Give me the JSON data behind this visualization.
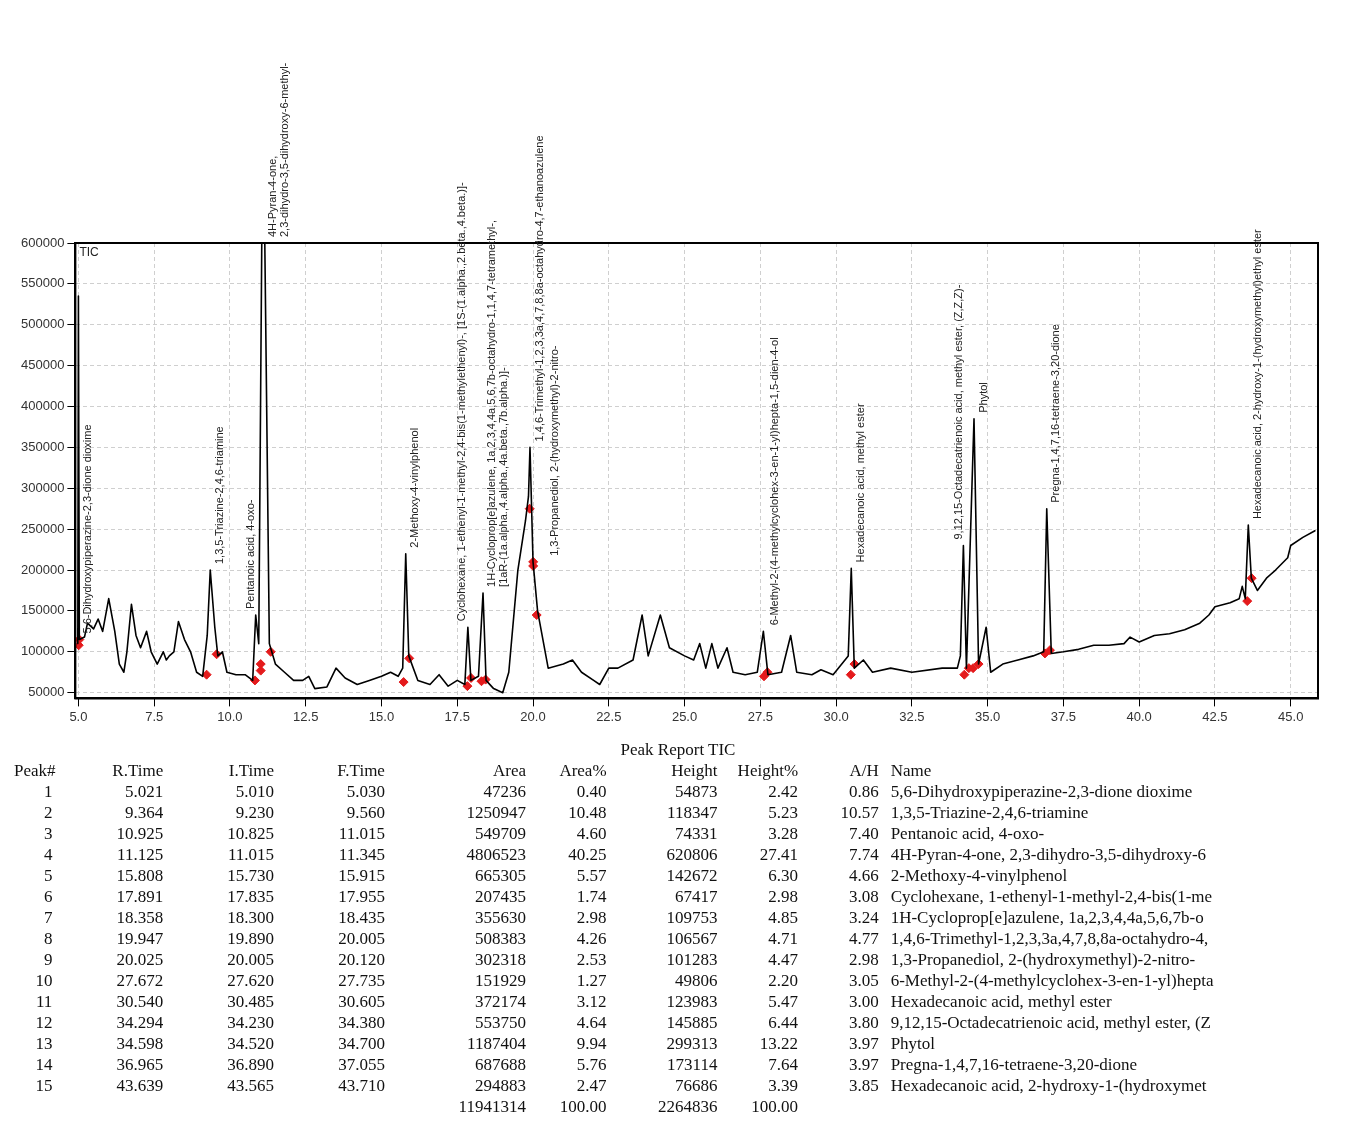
{
  "chart_data": {
    "type": "line",
    "xlim": [
      4.9,
      45.9
    ],
    "ylim": [
      43000,
      600000
    ],
    "xticks": [
      {
        "value": 5,
        "label": "5.0"
      },
      {
        "value": 7.5,
        "label": "7.5"
      },
      {
        "value": 10,
        "label": "10.0"
      },
      {
        "value": 12.5,
        "label": "12.5"
      },
      {
        "value": 15,
        "label": "15.0"
      },
      {
        "value": 17.5,
        "label": "17.5"
      },
      {
        "value": 20,
        "label": "20.0"
      },
      {
        "value": 22.5,
        "label": "22.5"
      },
      {
        "value": 25,
        "label": "25.0"
      },
      {
        "value": 27.5,
        "label": "27.5"
      },
      {
        "value": 30,
        "label": "30.0"
      },
      {
        "value": 32.5,
        "label": "32.5"
      },
      {
        "value": 35,
        "label": "35.0"
      },
      {
        "value": 37.5,
        "label": "37.5"
      },
      {
        "value": 40,
        "label": "40.0"
      },
      {
        "value": 42.5,
        "label": "42.5"
      },
      {
        "value": 45,
        "label": "45.0"
      }
    ],
    "yticks": [
      50000,
      100000,
      150000,
      200000,
      250000,
      300000,
      350000,
      400000,
      450000,
      500000,
      550000,
      600000
    ],
    "grid": true,
    "legend": false,
    "series": [
      {
        "type": "line",
        "color": "#000000",
        "x": [
          4.98,
          5.0,
          5.03,
          5.2,
          5.3,
          5.5,
          5.65,
          5.8,
          6.0,
          6.2,
          6.35,
          6.5,
          6.6,
          6.75,
          6.9,
          7.05,
          7.25,
          7.4,
          7.6,
          7.8,
          7.9,
          8.0,
          8.15,
          8.3,
          8.5,
          8.7,
          8.9,
          9.1,
          9.25,
          9.35,
          9.5,
          9.6,
          9.75,
          9.9,
          10.2,
          10.5,
          10.75,
          10.85,
          10.95,
          11.05,
          11.15,
          11.3,
          11.5,
          11.8,
          12.1,
          12.4,
          12.6,
          12.8,
          13.2,
          13.5,
          13.8,
          14.2,
          14.6,
          15.0,
          15.3,
          15.55,
          15.7,
          15.8,
          15.9,
          16.2,
          16.6,
          16.9,
          17.2,
          17.5,
          17.75,
          17.85,
          17.95,
          18.2,
          18.35,
          18.45,
          18.7,
          19.0,
          19.2,
          19.5,
          19.75,
          19.85,
          19.9,
          20.0,
          20.15,
          20.3,
          20.5,
          21.0,
          21.3,
          21.6,
          22.0,
          22.2,
          22.5,
          22.8,
          23.3,
          23.6,
          23.8,
          24.2,
          24.5,
          25.0,
          25.3,
          25.5,
          25.7,
          25.9,
          26.1,
          26.4,
          26.6,
          27.0,
          27.4,
          27.6,
          27.75,
          28.2,
          28.5,
          28.7,
          29.2,
          29.5,
          29.9,
          30.4,
          30.5,
          30.6,
          30.9,
          31.2,
          31.8,
          32.5,
          33.5,
          34.0,
          34.1,
          34.2,
          34.3,
          34.55,
          34.7,
          34.95,
          35.1,
          35.5,
          36.0,
          36.5,
          36.85,
          36.95,
          37.1,
          37.5,
          38.0,
          38.5,
          39.0,
          39.5,
          39.7,
          40.0,
          40.5,
          41.0,
          41.5,
          42.0,
          42.3,
          42.5,
          43.0,
          43.3,
          43.4,
          43.5,
          43.6,
          43.7,
          43.9,
          44.2,
          44.5,
          44.9,
          45.0,
          45.4,
          45.8
        ],
        "values": [
          110000,
          535000,
          115000,
          118000,
          135000,
          128000,
          140000,
          125000,
          165000,
          125000,
          85000,
          75000,
          100000,
          158000,
          120000,
          105000,
          125000,
          100000,
          85000,
          100000,
          90000,
          95000,
          100000,
          137000,
          115000,
          100000,
          75000,
          70000,
          120000,
          200000,
          130000,
          95000,
          100000,
          75000,
          72000,
          72000,
          65000,
          145000,
          110000,
          600000,
          600000,
          110000,
          85000,
          75000,
          65000,
          65000,
          70000,
          55000,
          57000,
          80000,
          68000,
          60000,
          65000,
          70000,
          75000,
          70000,
          80000,
          220000,
          95000,
          65000,
          60000,
          72000,
          58000,
          65000,
          60000,
          130000,
          65000,
          70000,
          172000,
          65000,
          55000,
          50000,
          75000,
          200000,
          260000,
          290000,
          350000,
          210000,
          150000,
          120000,
          80000,
          85000,
          90000,
          75000,
          65000,
          60000,
          80000,
          80000,
          90000,
          145000,
          95000,
          145000,
          105000,
          95000,
          90000,
          110000,
          80000,
          110000,
          80000,
          105000,
          75000,
          72000,
          75000,
          125000,
          72000,
          75000,
          120000,
          75000,
          72000,
          78000,
          72000,
          95000,
          202000,
          80000,
          90000,
          75000,
          80000,
          75000,
          80000,
          80000,
          95000,
          230000,
          80000,
          385000,
          85000,
          130000,
          75000,
          85000,
          90000,
          95000,
          100000,
          275000,
          98000,
          100000,
          103000,
          108000,
          108000,
          110000,
          118000,
          112000,
          120000,
          122000,
          127000,
          135000,
          145000,
          155000,
          160000,
          165000,
          180000,
          165000,
          255000,
          190000,
          175000,
          190000,
          200000,
          215000,
          230000,
          240000,
          248000
        ]
      },
      {
        "type": "scatter",
        "color": "#e41a1c",
        "marker": "diamond",
        "x": [
          5.01,
          5.03,
          9.23,
          9.56,
          10.825,
          11.015,
          11.015,
          11.345,
          15.73,
          15.915,
          17.835,
          17.955,
          18.3,
          18.435,
          19.89,
          20.005,
          20.005,
          20.12,
          27.62,
          27.735,
          30.485,
          30.605,
          34.23,
          34.38,
          34.52,
          34.7,
          36.89,
          37.055,
          43.565,
          43.71
        ],
        "values": [
          108000,
          115000,
          72000,
          97000,
          65000,
          85000,
          77000,
          100000,
          63000,
          92000,
          58000,
          68000,
          64000,
          66000,
          275000,
          210000,
          205000,
          145000,
          70000,
          75000,
          72000,
          85000,
          72000,
          80000,
          80000,
          85000,
          98000,
          102000,
          162000,
          190000
        ]
      }
    ],
    "annotations": [
      "TIC",
      {
        "text": "5,6-Dihydroxypiperazine-2,3-dione dioxime",
        "x": 5.021,
        "y": 115000
      },
      {
        "text": "1,3,5-Triazine-2,4,6-triamine",
        "x": 9.364,
        "y": 200000
      },
      {
        "text": "Pentanoic acid, 4-oxo-",
        "x": 10.925,
        "y": 145000
      },
      {
        "text": "4H-Pyran-4-one, 2,3-dihydro-3,5-dihydroxy-6-methyl-",
        "x": 11.125,
        "y": 600000
      },
      {
        "text": "2-Methoxy-4-vinylphenol",
        "x": 15.808,
        "y": 220000
      },
      {
        "text": "Cyclohexane, 1-ethenyl-1-methyl-2,4-bis(1-methylethenyl)-, [1S-(1.alpha.,2.beta.,4.beta.)]-",
        "x": 17.891,
        "y": 130000
      },
      {
        "text": "1H-Cycloprop[e]azulene, 1a,2,3,4,4a,5,6,7b-octahydro-1,1,4,7-tetramethyl-, [1aR-(1a.alpha.,4.alpha.,4a.beta.,7b.alpha.)]-",
        "x": 18.358,
        "y": 172000
      },
      {
        "text": "1,4,6-Trimethyl-1,2,3,3a,4,7,8,8a-octahydro-4,7-ethanoazulene",
        "x": 19.947,
        "y": 350000
      },
      {
        "text": "1,3-Propanediol, 2-(hydroxymethyl)-2-nitro-",
        "x": 20.025,
        "y": 210000
      },
      {
        "text": "6-Methyl-2-(4-methylcyclohex-3-en-1-yl)hepta-1,5-dien-4-ol",
        "x": 27.672,
        "y": 125000
      },
      {
        "text": "Hexadecanoic acid, methyl ester",
        "x": 30.54,
        "y": 202000
      },
      {
        "text": "9,12,15-Octadecatrienoic acid, methyl ester, (Z,Z,Z)-",
        "x": 34.294,
        "y": 230000
      },
      {
        "text": "Phytol",
        "x": 34.598,
        "y": 385000
      },
      {
        "text": "Pregna-1,4,7,16-tetraene-3,20-dione",
        "x": 36.965,
        "y": 275000
      },
      {
        "text": "Hexadecanoic acid, 2-hydroxy-1-(hydroxymethyl)ethyl ester",
        "x": 43.639,
        "y": 255000
      },
      "Peak Report TIC",
      "Peak#",
      "R.Time",
      "I.Time",
      "F.Time",
      "Area",
      "Area%",
      "Height",
      "Height%",
      "A/H",
      "Name",
      "1",
      "5.021",
      "5.010",
      "5.030",
      "47236",
      "0.40",
      "54873",
      "2.42",
      "0.86",
      "5,6-Dihydroxypiperazine-2,3-dione dioxime",
      "2",
      "9.364",
      "9.230",
      "9.560",
      "1250947",
      "10.48",
      "118347",
      "5.23",
      "10.57",
      "1,3,5-Triazine-2,4,6-triamine",
      "3",
      "10.925",
      "10.825",
      "11.015",
      "549709",
      "4.60",
      "74331",
      "3.28",
      "7.40",
      "Pentanoic acid, 4-oxo-",
      "4",
      "11.125",
      "11.015",
      "11.345",
      "4806523",
      "40.25",
      "620806",
      "27.41",
      "7.74",
      "4H-Pyran-4-one, 2,3-dihydro-3,5-dihydroxy-6",
      "5",
      "15.808",
      "15.730",
      "15.915",
      "665305",
      "5.57",
      "142672",
      "6.30",
      "4.66",
      "2-Methoxy-4-vinylphenol",
      "6",
      "17.891",
      "17.835",
      "17.955",
      "207435",
      "1.74",
      "67417",
      "2.98",
      "3.08",
      "Cyclohexane, 1-ethenyl-1-methyl-2,4-bis(1-me",
      "7",
      "18.358",
      "18.300",
      "18.435",
      "355630",
      "2.98",
      "109753",
      "4.85",
      "3.24",
      "1H-Cycloprop[e]azulene, 1a,2,3,4,4a,5,6,7b-o",
      "8",
      "19.947",
      "19.890",
      "20.005",
      "508383",
      "4.26",
      "106567",
      "4.71",
      "4.77",
      "1,4,6-Trimethyl-1,2,3,3a,4,7,8,8a-octahydro-4,",
      "9",
      "20.025",
      "20.005",
      "20.120",
      "302318",
      "2.53",
      "101283",
      "4.47",
      "2.98",
      "1,3-Propanediol, 2-(hydroxymethyl)-2-nitro-",
      "10",
      "27.672",
      "27.620",
      "27.735",
      "151929",
      "1.27",
      "49806",
      "2.20",
      "3.05",
      "6-Methyl-2-(4-methylcyclohex-3-en-1-yl)hepta",
      "11",
      "30.540",
      "30.485",
      "30.605",
      "372174",
      "3.12",
      "123983",
      "5.47",
      "3.00",
      "Hexadecanoic acid, methyl ester",
      "12",
      "34.294",
      "34.230",
      "34.380",
      "553750",
      "4.64",
      "145885",
      "6.44",
      "3.80",
      "9,12,15-Octadecatrienoic acid, methyl ester, (Z",
      "13",
      "34.598",
      "34.520",
      "34.700",
      "1187404",
      "9.94",
      "299313",
      "13.22",
      "3.97",
      "Phytol",
      "14",
      "36.965",
      "36.890",
      "37.055",
      "687688",
      "5.76",
      "173114",
      "7.64",
      "3.97",
      "Pregna-1,4,7,16-tetraene-3,20-dione",
      "15",
      "43.639",
      "43.565",
      "43.710",
      "294883",
      "2.47",
      "76686",
      "3.39",
      "3.85",
      "Hexadecanoic acid, 2-hydroxy-1-(hydroxymet",
      "11941314",
      "100.00",
      "2264836",
      "100.00"
    ]
  }
}
